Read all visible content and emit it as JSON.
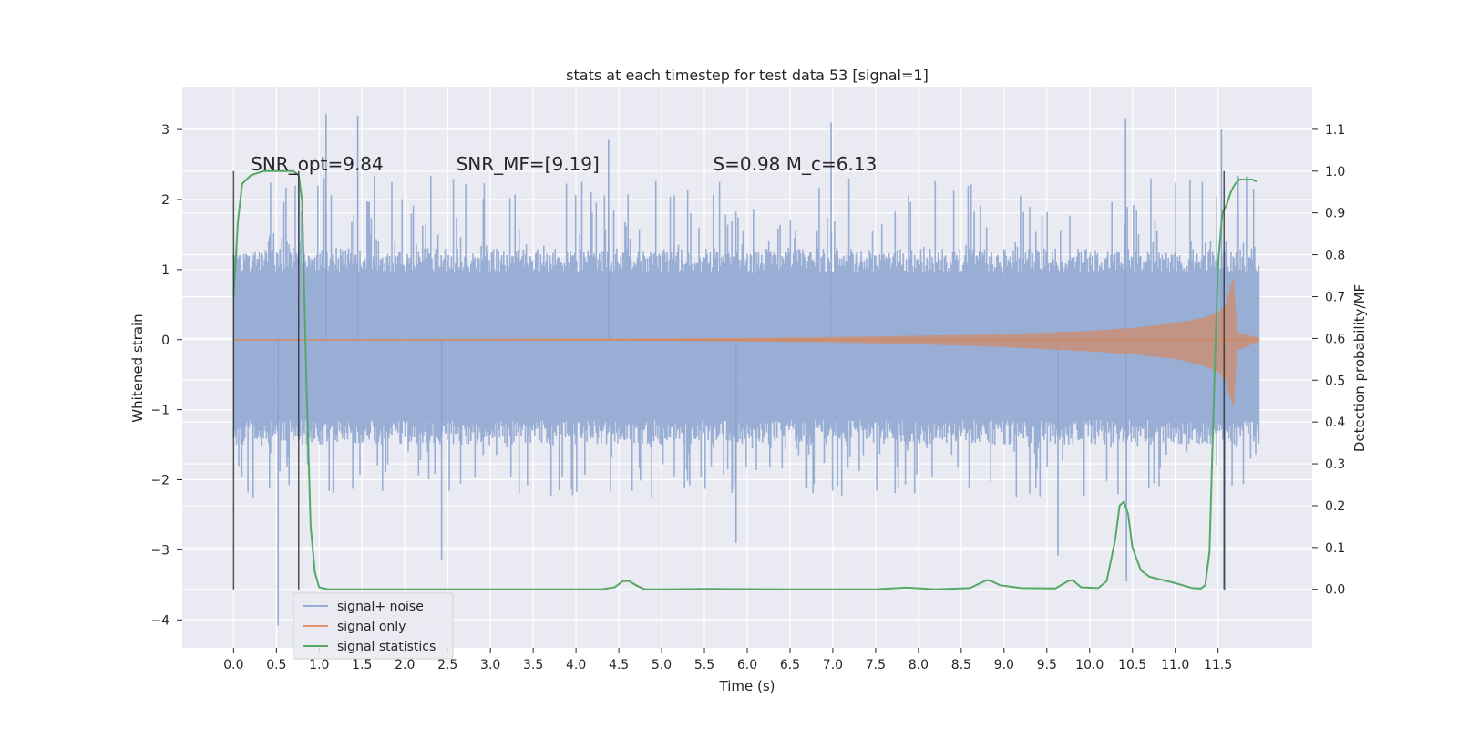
{
  "chart_data": {
    "type": "line",
    "title": "stats at each timestep for test data 53 [signal=1]",
    "xlabel": "Time (s)",
    "ylabel": "Whitened strain",
    "y2label": "Detection probability/MF",
    "xlim": [
      -0.6,
      12.6
    ],
    "ylim": [
      -4.4,
      3.6
    ],
    "y2lim": [
      -0.14,
      1.2
    ],
    "x_ticks": [
      0.0,
      0.5,
      1.0,
      1.5,
      2.0,
      2.5,
      3.0,
      3.5,
      4.0,
      4.5,
      5.0,
      5.5,
      6.0,
      6.5,
      7.0,
      7.5,
      8.0,
      8.5,
      9.0,
      9.5,
      10.0,
      10.5,
      11.0,
      11.5
    ],
    "x_tick_labels": [
      "0.0",
      "0.5",
      "1.0",
      "1.5",
      "2.0",
      "2.5",
      "3.0",
      "3.5",
      "4.0",
      "4.5",
      "5.0",
      "5.5",
      "6.0",
      "6.5",
      "7.0",
      "7.5",
      "8.0",
      "8.5",
      "9.0",
      "9.5",
      "10.0",
      "10.5",
      "11.0",
      "11.5"
    ],
    "y_ticks": [
      -4,
      -3,
      -2,
      -1,
      0,
      1,
      2,
      3
    ],
    "y_tick_labels": [
      "−4",
      "−3",
      "−2",
      "−1",
      "0",
      "1",
      "2",
      "3"
    ],
    "y2_ticks": [
      0.0,
      0.1,
      0.2,
      0.3,
      0.4,
      0.5,
      0.6,
      0.7,
      0.8,
      0.9,
      1.0,
      1.1
    ],
    "y2_tick_labels": [
      "0.0",
      "0.1",
      "0.2",
      "0.3",
      "0.4",
      "0.5",
      "0.6",
      "0.7",
      "0.8",
      "0.9",
      "1.0",
      "1.1"
    ],
    "grid": true,
    "legend_position": "lower-left",
    "colors": {
      "background": "#eaeaf2",
      "grid": "#ffffff",
      "noise": "#8ba3cf",
      "signal": "#dd8452",
      "stats": "#55a868",
      "vlines": "#2b2b2b"
    },
    "annotations": [
      {
        "text": "SNR_opt=9.84",
        "x": 0.2,
        "y2": 1.0
      },
      {
        "text": "SNR_MF=[9.19]",
        "x": 2.6,
        "y2": 1.0
      },
      {
        "text": "S=0.98   M_c=6.13",
        "x": 5.6,
        "y2": 1.0
      }
    ],
    "vertical_lines": [
      0.0,
      0.76,
      11.57
    ],
    "series": [
      {
        "name": "signal+ noise",
        "color": "#8ba3cf",
        "x_range": [
          0.0,
          11.98
        ],
        "envelope": {
          "mean": 0.0,
          "typical_max": 1.3,
          "typical_min": -1.5,
          "peak_max": 3.22,
          "peak_min": -4.08
        },
        "spikes": [
          {
            "x": 0.52,
            "y": -4.08
          },
          {
            "x": 1.08,
            "y": 3.22
          },
          {
            "x": 1.45,
            "y": 3.2
          },
          {
            "x": 2.43,
            "y": -3.15
          },
          {
            "x": 4.38,
            "y": 2.85
          },
          {
            "x": 5.87,
            "y": -2.9
          },
          {
            "x": 6.98,
            "y": 3.1
          },
          {
            "x": 9.63,
            "y": -3.08
          },
          {
            "x": 10.42,
            "y": 3.15
          },
          {
            "x": 10.43,
            "y": -3.45
          },
          {
            "x": 11.54,
            "y": 3.0
          },
          {
            "x": 11.58,
            "y": -3.58
          }
        ]
      },
      {
        "name": "signal only",
        "color": "#dd8452",
        "x": [
          0.0,
          5.0,
          7.0,
          8.0,
          9.0,
          10.0,
          10.5,
          11.0,
          11.3,
          11.5,
          11.6,
          11.65,
          11.68,
          11.72,
          11.98
        ],
        "upper": [
          0.0,
          0.01,
          0.03,
          0.05,
          0.07,
          0.12,
          0.16,
          0.23,
          0.3,
          0.38,
          0.5,
          0.75,
          0.88,
          0.1,
          0.02
        ],
        "lower": [
          0.0,
          -0.01,
          -0.03,
          -0.06,
          -0.1,
          -0.16,
          -0.2,
          -0.27,
          -0.35,
          -0.45,
          -0.6,
          -0.85,
          -0.95,
          -0.15,
          -0.02
        ]
      },
      {
        "name": "signal statistics",
        "color": "#55a868",
        "axis": "right",
        "x": [
          0.0,
          0.05,
          0.1,
          0.2,
          0.35,
          0.5,
          0.6,
          0.7,
          0.76,
          0.8,
          0.85,
          0.9,
          0.95,
          1.0,
          1.1,
          1.5,
          4.3,
          4.45,
          4.55,
          4.62,
          4.7,
          4.8,
          5.0,
          5.5,
          6.5,
          7.5,
          7.85,
          8.2,
          8.6,
          8.8,
          8.85,
          8.95,
          9.2,
          9.6,
          9.75,
          9.8,
          9.9,
          10.1,
          10.2,
          10.3,
          10.35,
          10.4,
          10.45,
          10.5,
          10.6,
          10.7,
          10.8,
          11.0,
          11.2,
          11.3,
          11.35,
          11.4,
          11.45,
          11.5,
          11.55,
          11.6,
          11.65,
          11.7,
          11.75,
          11.8,
          11.85,
          11.9,
          11.95
        ],
        "y": [
          0.7,
          0.88,
          0.97,
          0.99,
          1.0,
          1.0,
          1.0,
          1.0,
          0.99,
          0.93,
          0.5,
          0.15,
          0.04,
          0.005,
          0.0,
          0.0,
          0.0,
          0.005,
          0.02,
          0.02,
          0.01,
          0.0,
          0.0,
          0.001,
          0.0,
          0.0,
          0.004,
          0.0,
          0.003,
          0.022,
          0.02,
          0.01,
          0.003,
          0.002,
          0.02,
          0.022,
          0.005,
          0.003,
          0.02,
          0.12,
          0.2,
          0.21,
          0.18,
          0.1,
          0.045,
          0.03,
          0.025,
          0.015,
          0.003,
          0.002,
          0.01,
          0.09,
          0.45,
          0.78,
          0.9,
          0.92,
          0.95,
          0.97,
          0.98,
          0.98,
          0.98,
          0.98,
          0.975
        ]
      }
    ]
  }
}
